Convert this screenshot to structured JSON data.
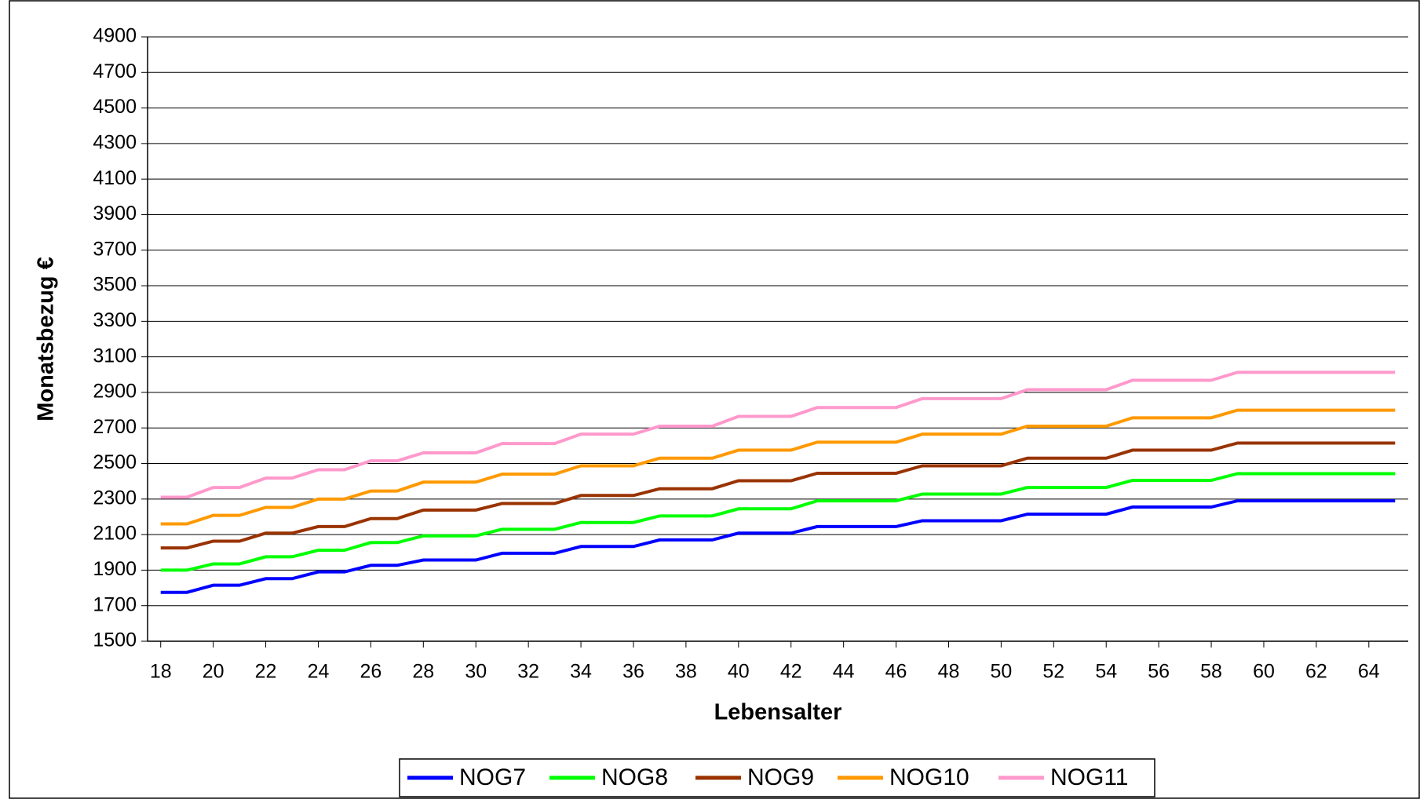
{
  "chart_data": {
    "type": "line",
    "x_label": "Lebensalter",
    "y_label": "Monatsbezug €",
    "x": [
      18,
      19,
      20,
      21,
      22,
      23,
      24,
      25,
      26,
      27,
      28,
      29,
      30,
      31,
      32,
      33,
      34,
      35,
      36,
      37,
      38,
      39,
      40,
      41,
      42,
      43,
      44,
      45,
      46,
      47,
      48,
      49,
      50,
      51,
      52,
      53,
      54,
      55,
      56,
      57,
      58,
      59,
      60,
      61,
      62,
      63,
      64,
      65
    ],
    "xlim": [
      17.5,
      65.5
    ],
    "xticks": [
      18,
      20,
      22,
      24,
      26,
      28,
      30,
      32,
      34,
      36,
      38,
      40,
      42,
      44,
      46,
      48,
      50,
      52,
      54,
      56,
      58,
      60,
      62,
      64
    ],
    "ylim": [
      1500,
      4900
    ],
    "yticks": [
      1500,
      1700,
      1900,
      2100,
      2300,
      2500,
      2700,
      2900,
      3100,
      3300,
      3500,
      3700,
      3900,
      4100,
      4300,
      4500,
      4700,
      4900
    ],
    "grid": true,
    "legend": "bottom",
    "series": [
      {
        "name": "NOG7",
        "color": "#0000ff",
        "values": [
          1775,
          1775,
          1815,
          1815,
          1852,
          1852,
          1890,
          1890,
          1927,
          1927,
          1957,
          1957,
          1957,
          1995,
          1995,
          1995,
          2033,
          2033,
          2033,
          2070,
          2070,
          2070,
          2108,
          2108,
          2108,
          2145,
          2145,
          2145,
          2145,
          2178,
          2178,
          2178,
          2178,
          2215,
          2215,
          2215,
          2215,
          2255,
          2255,
          2255,
          2255,
          2290,
          2290,
          2290,
          2290,
          2290,
          2290,
          2290
        ]
      },
      {
        "name": "NOG8",
        "color": "#00ff00",
        "values": [
          1900,
          1900,
          1935,
          1935,
          1975,
          1975,
          2012,
          2012,
          2055,
          2055,
          2093,
          2093,
          2093,
          2130,
          2130,
          2130,
          2168,
          2168,
          2168,
          2205,
          2205,
          2205,
          2245,
          2245,
          2245,
          2290,
          2290,
          2290,
          2290,
          2328,
          2328,
          2328,
          2328,
          2365,
          2365,
          2365,
          2365,
          2405,
          2405,
          2405,
          2405,
          2443,
          2443,
          2443,
          2443,
          2443,
          2443,
          2443
        ]
      },
      {
        "name": "NOG9",
        "color": "#993300",
        "values": [
          2025,
          2025,
          2063,
          2063,
          2108,
          2108,
          2145,
          2145,
          2190,
          2190,
          2238,
          2238,
          2238,
          2275,
          2275,
          2275,
          2320,
          2320,
          2320,
          2358,
          2358,
          2358,
          2403,
          2403,
          2403,
          2445,
          2445,
          2445,
          2445,
          2487,
          2487,
          2487,
          2487,
          2530,
          2530,
          2530,
          2530,
          2575,
          2575,
          2575,
          2575,
          2615,
          2615,
          2615,
          2615,
          2615,
          2615,
          2615
        ]
      },
      {
        "name": "NOG10",
        "color": "#ff9900",
        "values": [
          2160,
          2160,
          2208,
          2208,
          2253,
          2253,
          2300,
          2300,
          2345,
          2345,
          2395,
          2395,
          2395,
          2440,
          2440,
          2440,
          2487,
          2487,
          2487,
          2530,
          2530,
          2530,
          2575,
          2575,
          2575,
          2620,
          2620,
          2620,
          2620,
          2665,
          2665,
          2665,
          2665,
          2710,
          2710,
          2710,
          2710,
          2757,
          2757,
          2757,
          2757,
          2800,
          2800,
          2800,
          2800,
          2800,
          2800,
          2800
        ]
      },
      {
        "name": "NOG11",
        "color": "#ff99cc",
        "values": [
          2310,
          2310,
          2365,
          2365,
          2418,
          2418,
          2465,
          2465,
          2515,
          2515,
          2560,
          2560,
          2560,
          2612,
          2612,
          2612,
          2665,
          2665,
          2665,
          2710,
          2710,
          2710,
          2765,
          2765,
          2765,
          2815,
          2815,
          2815,
          2815,
          2865,
          2865,
          2865,
          2865,
          2915,
          2915,
          2915,
          2915,
          2968,
          2968,
          2968,
          2968,
          3013,
          3013,
          3013,
          3013,
          3013,
          3013,
          3013
        ]
      }
    ]
  }
}
